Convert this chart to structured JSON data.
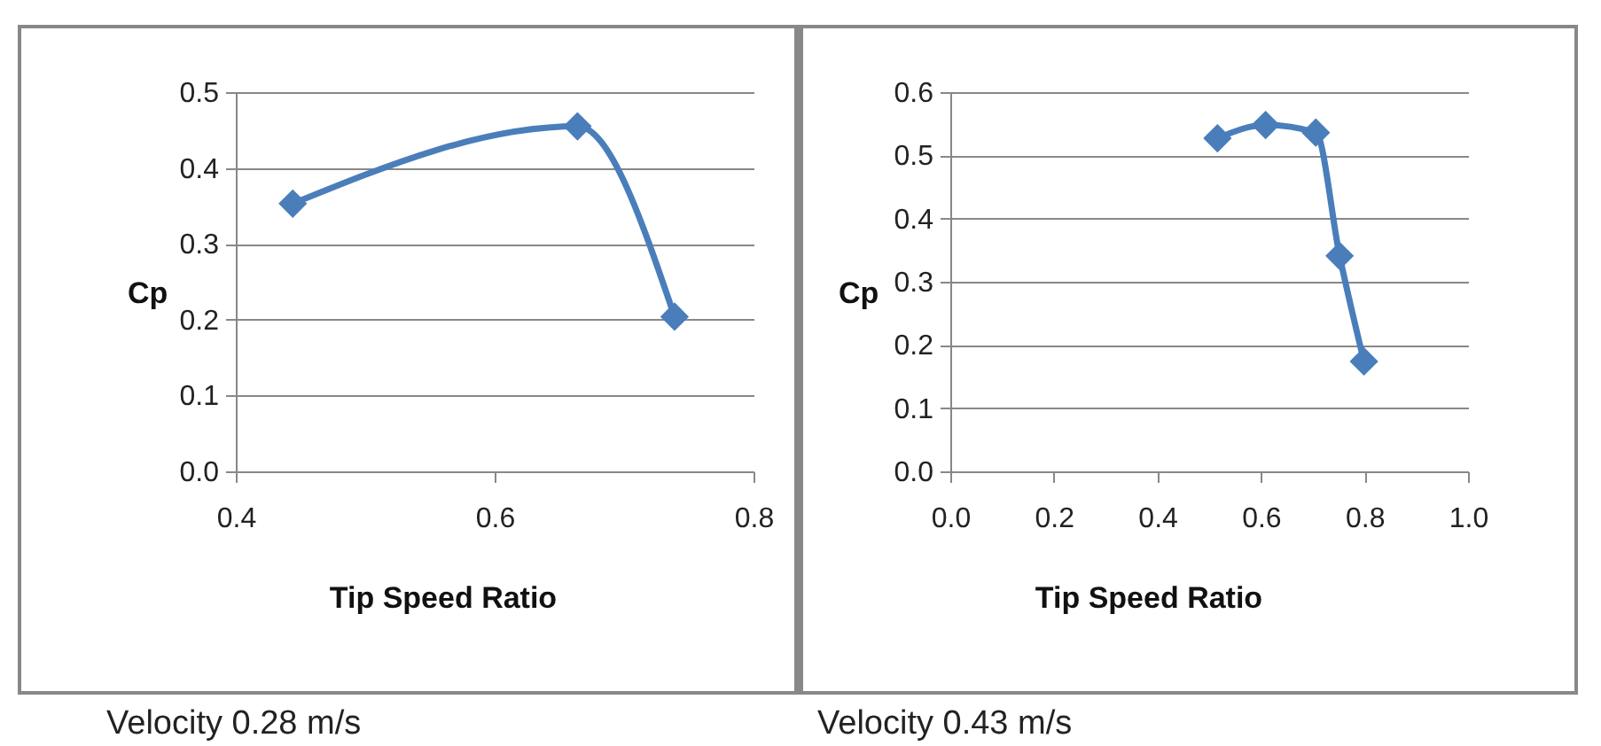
{
  "chart_data": [
    {
      "type": "line",
      "xlabel": "Tip Speed Ratio",
      "ylabel": "Cp",
      "x": [
        0.444,
        0.664,
        0.739
      ],
      "series": [
        {
          "color": "#4a7ebb",
          "values": [
            0.353,
            0.455,
            0.204
          ]
        }
      ],
      "xlim": [
        0.4,
        0.8
      ],
      "xticks": [
        {
          "value": 0.4,
          "label": "0.4"
        },
        {
          "value": 0.6,
          "label": "0.6"
        },
        {
          "value": 0.8,
          "label": "0.8"
        }
      ],
      "ylim": [
        0,
        0.5
      ],
      "yticks": [
        {
          "value": 0,
          "label": "0.0"
        },
        {
          "value": 0.1,
          "label": "0.1"
        },
        {
          "value": 0.2,
          "label": "0.2"
        },
        {
          "value": 0.3,
          "label": "0.3"
        },
        {
          "value": 0.4,
          "label": "0.4"
        },
        {
          "value": 0.5,
          "label": "0.5"
        }
      ],
      "grid": "y",
      "marker": "diamond",
      "line_style": "solid",
      "annotations": [
        "Velocity 0.28 m/s"
      ]
    },
    {
      "type": "line",
      "xlabel": "Tip Speed Ratio",
      "ylabel": "Cp",
      "x": [
        0.516,
        0.609,
        0.706,
        0.752,
        0.799
      ],
      "series": [
        {
          "color": "#4a7ebb",
          "values": [
            0.527,
            0.548,
            0.536,
            0.341,
            0.174
          ]
        }
      ],
      "xlim": [
        0,
        1
      ],
      "xticks": [
        {
          "value": 0,
          "label": "0.0"
        },
        {
          "value": 0.2,
          "label": "0.2"
        },
        {
          "value": 0.4,
          "label": "0.4"
        },
        {
          "value": 0.6,
          "label": "0.6"
        },
        {
          "value": 0.8,
          "label": "0.8"
        },
        {
          "value": 1,
          "label": "1.0"
        }
      ],
      "ylim": [
        0,
        0.6
      ],
      "yticks": [
        {
          "value": 0,
          "label": "0.0"
        },
        {
          "value": 0.1,
          "label": "0.1"
        },
        {
          "value": 0.2,
          "label": "0.2"
        },
        {
          "value": 0.3,
          "label": "0.3"
        },
        {
          "value": 0.4,
          "label": "0.4"
        },
        {
          "value": 0.5,
          "label": "0.5"
        },
        {
          "value": 0.6,
          "label": "0.6"
        }
      ],
      "grid": "y",
      "marker": "diamond",
      "line_style": "solid",
      "annotations": [
        "Velocity 0.43 m/s"
      ]
    }
  ]
}
